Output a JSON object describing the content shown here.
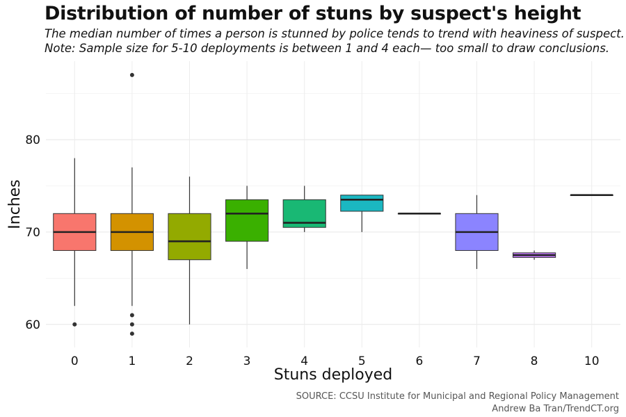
{
  "header": {
    "title": "Distribution of number of stuns by suspect's height",
    "subtitle_line1": "The median number of times a person is stunned by police tends to trend with heaviness of suspect.",
    "subtitle_line2": "Note: Sample size for 5-10 deployments is between 1 and 4 each— too small to draw conclusions."
  },
  "caption": {
    "line1": "SOURCE: CCSU Institute for Municipal and Regional Policy Management",
    "line2": "Andrew Ba Tran/TrendCT.org"
  },
  "chart_data": {
    "type": "boxplot",
    "xlabel": "Stuns deployed",
    "ylabel": "Inches",
    "ylim": [
      57.5,
      88.5
    ],
    "yticks": [
      60,
      70,
      80
    ],
    "grid": true,
    "categories": [
      "0",
      "1",
      "2",
      "3",
      "4",
      "5",
      "6",
      "7",
      "8",
      "10"
    ],
    "boxes": [
      {
        "category": "0",
        "color": "#F8766D",
        "whisker_low": 62,
        "q1": 68,
        "median": 70,
        "q3": 72,
        "whisker_high": 78,
        "outliers": [
          60
        ]
      },
      {
        "category": "1",
        "color": "#D39200",
        "whisker_low": 62,
        "q1": 68,
        "median": 70,
        "q3": 72,
        "whisker_high": 77,
        "outliers": [
          87,
          61,
          60,
          59
        ]
      },
      {
        "category": "2",
        "color": "#93AA00",
        "whisker_low": 60,
        "q1": 67,
        "median": 69,
        "q3": 72,
        "whisker_high": 76,
        "outliers": []
      },
      {
        "category": "3",
        "color": "#3AB000",
        "whisker_low": 66,
        "q1": 69,
        "median": 72,
        "q3": 73.5,
        "whisker_high": 75,
        "outliers": []
      },
      {
        "category": "4",
        "color": "#19B874",
        "whisker_low": 70,
        "q1": 70.5,
        "median": 71,
        "q3": 73.5,
        "whisker_high": 75,
        "outliers": []
      },
      {
        "category": "5",
        "color": "#1BB7C1",
        "whisker_low": 70,
        "q1": 72.25,
        "median": 73.5,
        "q3": 74,
        "whisker_high": 74,
        "outliers": []
      },
      {
        "category": "6",
        "color": "#00A9FF",
        "whisker_low": 72,
        "q1": 72,
        "median": 72,
        "q3": 72,
        "whisker_high": 72,
        "outliers": []
      },
      {
        "category": "7",
        "color": "#8B84FF",
        "whisker_low": 66,
        "q1": 68,
        "median": 70,
        "q3": 72,
        "whisker_high": 74,
        "outliers": []
      },
      {
        "category": "8",
        "color": "#C77CFF",
        "whisker_low": 67,
        "q1": 67.25,
        "median": 67.5,
        "q3": 67.75,
        "whisker_high": 68,
        "outliers": []
      },
      {
        "category": "10",
        "color": "#FF61C3",
        "whisker_low": 74,
        "q1": 74,
        "median": 74,
        "q3": 74,
        "whisker_high": 74,
        "outliers": []
      }
    ]
  }
}
